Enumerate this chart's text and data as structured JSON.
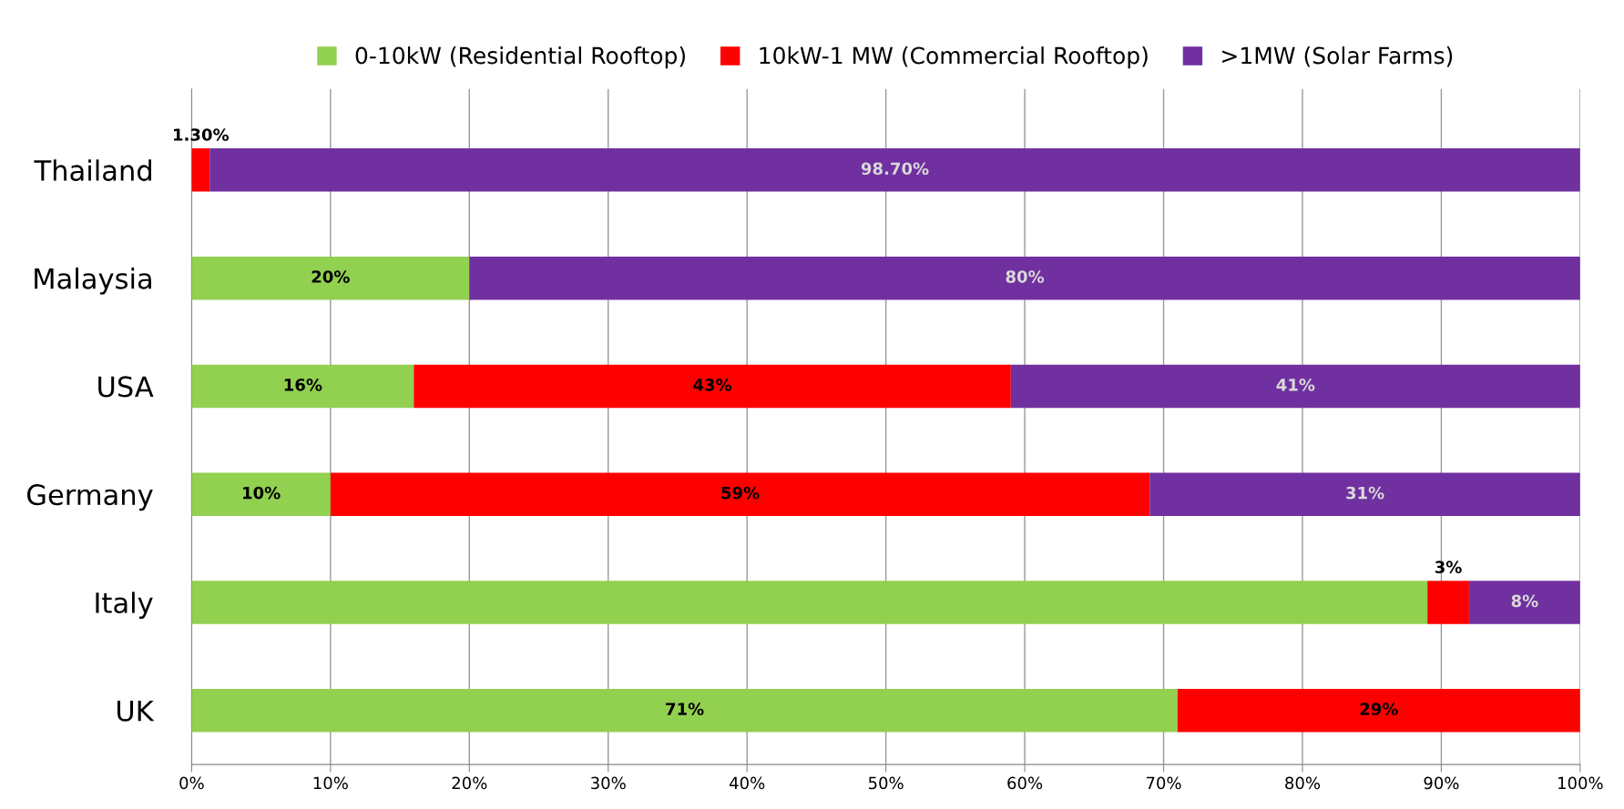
{
  "chart_data": {
    "type": "bar",
    "orientation": "horizontal",
    "stacked": true,
    "categories": [
      "Thailand",
      "Malaysia",
      "USA",
      "Germany",
      "Italy",
      "UK"
    ],
    "series": [
      {
        "name": "0-10kW (Residential Rooftop)",
        "color": "#92d050",
        "values": [
          0,
          20,
          16,
          10,
          89,
          71
        ],
        "value_labels": [
          null,
          "20%",
          "16%",
          "10%",
          null,
          "71%"
        ]
      },
      {
        "name": "10kW-1 MW (Commercial Rooftop)",
        "color": "#ff0000",
        "values": [
          1.3,
          0,
          43,
          59,
          3,
          29
        ],
        "value_labels": [
          "1.30%",
          null,
          "43%",
          "59%",
          "3%",
          "29%"
        ]
      },
      {
        "name": ">1MW (Solar Farms)",
        "color": "#7030a0",
        "values": [
          98.7,
          80,
          41,
          31,
          8,
          0
        ],
        "value_labels": [
          "98.70%",
          "80%",
          "41%",
          "31%",
          "8%",
          null
        ]
      }
    ],
    "xlim": [
      0,
      100
    ],
    "xticks": [
      {
        "value": 0,
        "label": "0%"
      },
      {
        "value": 10,
        "label": "10%"
      },
      {
        "value": 20,
        "label": "20%"
      },
      {
        "value": 30,
        "label": "30%"
      },
      {
        "value": 40,
        "label": "40%"
      },
      {
        "value": 50,
        "label": "50%"
      },
      {
        "value": 60,
        "label": "60%"
      },
      {
        "value": 70,
        "label": "70%"
      },
      {
        "value": 80,
        "label": "80%"
      },
      {
        "value": 90,
        "label": "90%"
      },
      {
        "value": 100,
        "label": "100%"
      }
    ],
    "grid": "x",
    "legend": "top"
  }
}
